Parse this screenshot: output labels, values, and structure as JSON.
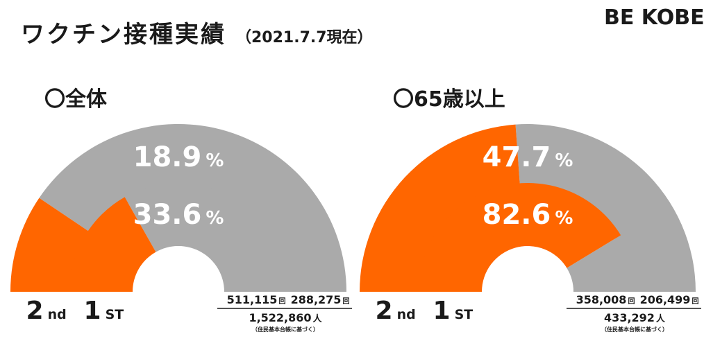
{
  "header": {
    "title": "ワクチン接種実績",
    "date": "（2021.7.7現在）",
    "logo": "BE KOBE"
  },
  "colors": {
    "accent": "#ff6600",
    "remaining": "#aaaaaa",
    "text": "#1a1a1a"
  },
  "chart_data": [
    {
      "type": "donut-gauge",
      "title": "〇全体",
      "rings": [
        {
          "label": "2nd",
          "label_main": "2",
          "label_sub": "nd",
          "percent": 18.9,
          "percent_text": "18.9",
          "count": "288,275"
        },
        {
          "label": "1ST",
          "label_main": "1",
          "label_sub": "ST",
          "percent": 33.6,
          "percent_text": "33.6",
          "count": "511,115"
        }
      ],
      "unit_percent": "%",
      "unit_count": "回",
      "population": "1,522,860",
      "population_unit": "人",
      "population_note": "（住民基本台帳に基づく）"
    },
    {
      "type": "donut-gauge",
      "title": "〇65歳以上",
      "rings": [
        {
          "label": "2nd",
          "label_main": "2",
          "label_sub": "nd",
          "percent": 47.7,
          "percent_text": "47.7",
          "count": "206,499"
        },
        {
          "label": "1ST",
          "label_main": "1",
          "label_sub": "ST",
          "percent": 82.6,
          "percent_text": "82.6",
          "count": "358,008"
        }
      ],
      "unit_percent": "%",
      "unit_count": "回",
      "population": "433,292",
      "population_unit": "人",
      "population_note": "（住民基本台帳に基づく）"
    }
  ]
}
